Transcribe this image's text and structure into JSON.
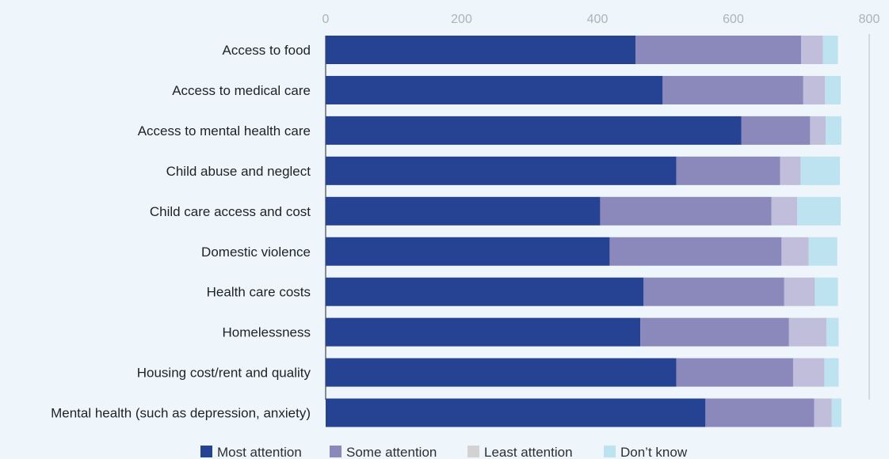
{
  "chart_data": {
    "type": "bar",
    "orientation": "horizontal",
    "stacked": true,
    "categories": [
      "Access to food",
      "Access to medical care",
      "Access to mental health care",
      "Child abuse and neglect",
      "Child care access and cost",
      "Domestic violence",
      "Health care costs",
      "Homelessness",
      "Housing cost/rent and quality",
      "Mental health (such as depression, anxiety)"
    ],
    "series": [
      {
        "name": "Most attention",
        "color": "#264293",
        "values": [
          456,
          496,
          612,
          516,
          404,
          418,
          468,
          463,
          516,
          559
        ]
      },
      {
        "name": "Some attention",
        "color": "#8b89bc",
        "values": [
          244,
          207,
          101,
          153,
          252,
          253,
          207,
          219,
          172,
          160
        ]
      },
      {
        "name": "Least attention",
        "color": "#c1bedb",
        "values": [
          32,
          32,
          23,
          30,
          38,
          40,
          45,
          55,
          46,
          26
        ]
      },
      {
        "name": "Don’t know",
        "color": "#bde2f0",
        "values": [
          22,
          23,
          23,
          58,
          64,
          42,
          34,
          18,
          21,
          14
        ]
      }
    ],
    "legend_swatch_colors": [
      "#264293",
      "#8b89bc",
      "#d2d2d2",
      "#bde2f0"
    ],
    "x_ticks": [
      "0",
      "200",
      "400",
      "600",
      "800"
    ],
    "xlim": [
      0,
      800
    ],
    "axis_position": "top",
    "legend_position": "bottom",
    "grid": false
  }
}
